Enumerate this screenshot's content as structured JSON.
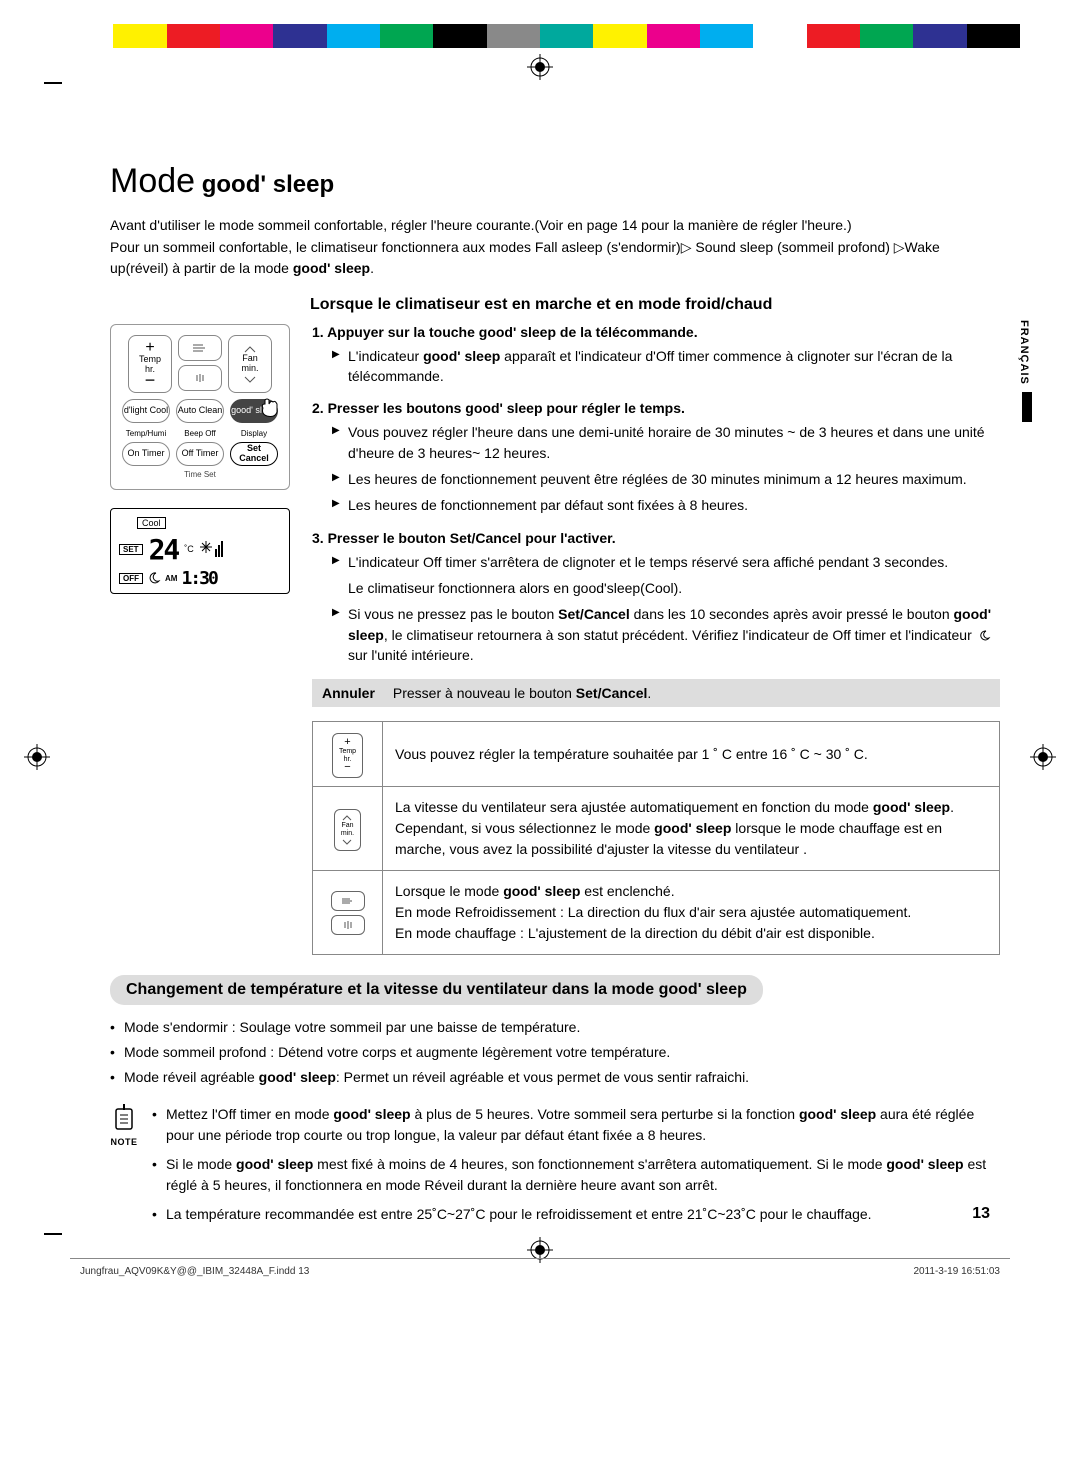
{
  "colorbar": [
    "#ffffff",
    "#fff100",
    "#ed1c24",
    "#ec008c",
    "#2e3192",
    "#00aeef",
    "#00a651",
    "#000000",
    "#898989",
    "#00a99d",
    "#fff200",
    "#ec008c",
    "#00aeef",
    "#ffffff",
    "#ed1c24",
    "#00a651",
    "#2e3192",
    "#000000"
  ],
  "title_prefix": "Mode",
  "title_gs": " good' sleep",
  "intro_lines": [
    "Avant d'utiliser le mode sommeil confortable, régler l'heure courante.(Voir en page 14 pour la manière de régler l'heure.)",
    "Pour un sommeil confortable, le climatiseur fonctionnera aux modes Fall asleep (s'endormir)▷ Sound sleep (sommeil profond) ▷Wake up(réveil) à partir de la mode good' sleep."
  ],
  "lang": "FRANÇAIS",
  "section1_title": "Lorsque le climatiseur est en marche et en mode froid/chaud",
  "remote": {
    "temp": "Temp",
    "hr": "hr.",
    "fan": "Fan",
    "min": "min.",
    "row2": [
      "d'light Cool",
      "Auto Clean",
      "good' sleep"
    ],
    "row2_sub": [
      "Temp/Humi",
      "Beep Off",
      "Display"
    ],
    "row3": [
      "On Timer",
      "Off Timer",
      "Set Cancel"
    ],
    "time_set": "Time Set"
  },
  "display": {
    "cool": "Cool",
    "set": "SET",
    "temp_value": "24",
    "temp_unit": "˚C",
    "off": "OFF",
    "time_ampm": "AM",
    "time_value": "1:30"
  },
  "steps": [
    {
      "title_parts": [
        "Appuyer sur la touche ",
        "good' sleep",
        " de la télécommande."
      ],
      "items": [
        {
          "text_parts": [
            "L'indicateur ",
            "good' sleep",
            " apparaît et  l'indicateur d'Off timer commence à clignoter sur l'écran de la télécommande."
          ]
        }
      ]
    },
    {
      "title_parts": [
        "Presser les boutons  ",
        "good' sleep",
        " pour régler le temps."
      ],
      "items": [
        {
          "text_parts": [
            "Vous pouvez régler l'heure dans une demi-unité horaire de 30 minutes ~ de 3 heures et dans une unité d'heure de 3 heures~ 12 heures."
          ]
        },
        {
          "text_parts": [
            "Les heures de fonctionnement peuvent être réglées de 30 minutes minimum a 12 heures maximum."
          ]
        },
        {
          "text_parts": [
            "Les heures de fonctionnement par défaut sont fixées à 8 heures."
          ]
        }
      ]
    },
    {
      "title_parts": [
        "Presser le bouton ",
        "Set/Cancel",
        " pour l'activer."
      ],
      "items": [
        {
          "text_parts": [
            "L'indicateur Off timer s'arrêtera de clignoter et le temps réservé sera affiché pendant 3 secondes."
          ]
        },
        {
          "noarrow": true,
          "text_parts": [
            "Le climatiseur fonctionnera alors en good'sleep(Cool)."
          ]
        },
        {
          "text_parts": [
            "Si vous ne pressez pas le bouton ",
            "Set/Cancel",
            " dans les 10 secondes après avoir pressé le bouton ",
            "good' sleep",
            ", le climatiseur retournera  à son statut précédent.  Vérifiez l'indicateur de Off timer et l'indicateur ",
            "ICON",
            " sur l'unité intérieure."
          ]
        }
      ]
    }
  ],
  "annuler_key": "Annuler",
  "annuler_text_parts": [
    "Presser à nouveau le bouton ",
    "Set/Cancel",
    "."
  ],
  "ops_table": [
    {
      "icon": "temp",
      "paras": [
        [
          "Vous pouvez régler la température souhaitée par 1 ˚ C entre 16 ˚ C ~ 30 ˚ C."
        ]
      ]
    },
    {
      "icon": "fan",
      "paras": [
        [
          "La vitesse du ventilateur sera ajustée automatiquement en fonction du mode ",
          "good' sleep",
          "."
        ],
        [
          "Cependant, si vous sélectionnez le mode ",
          "good' sleep",
          " lorsque le mode chauffage est en marche, vous avez la possibilité d'ajuster la vitesse du ventilateur ."
        ]
      ]
    },
    {
      "icon": "flow",
      "paras": [
        [
          "Lorsque le mode ",
          "good' sleep",
          " est enclenché."
        ],
        [
          "En mode Refroidissement : La direction du flux d'air sera ajustée automatiquement."
        ],
        [
          "En mode chauffage : L'ajustement de la direction du débit d'air est disponible."
        ]
      ]
    }
  ],
  "section2_title_parts": [
    "Changement de température et la vitesse du ventilateur dans la mode ",
    "good' sleep"
  ],
  "bullets": [
    [
      "Mode s'endormir : Soulage votre sommeil par une baisse de température."
    ],
    [
      "Mode sommeil profond : Détend votre corps et augmente légèrement votre température."
    ],
    [
      "Mode réveil agréable ",
      "good' sleep",
      ": Permet un réveil agréable et vous permet de vous sentir rafraichi."
    ]
  ],
  "note_label": "NOTE",
  "note_items": [
    [
      "Mettez l'Off timer en mode ",
      "good' sleep",
      " à plus de 5 heures. Votre sommeil sera perturbe si la fonction ",
      "good' sleep",
      " aura été réglée pour une période trop courte ou trop longue, la valeur par défaut étant fixée a 8 heures."
    ],
    [
      "Si le mode ",
      "good' sleep",
      " mest fixé à moins de 4 heures, son fonctionnement s'arrêtera automatiquement. Si le mode ",
      "good' sleep",
      " est réglé à 5 heures, il fonctionnera en mode Réveil durant la dernière heure avant son arrêt."
    ],
    [
      "La température recommandée est entre 25˚C~27˚C pour le refroidissement et entre 21˚C~23˚C pour le chauffage."
    ]
  ],
  "page_num": "13",
  "footer_left": "Jungfrau_AQV09K&Y@@_IBIM_32448A_F.indd   13",
  "footer_right": "2011-3-19   16:51:03"
}
